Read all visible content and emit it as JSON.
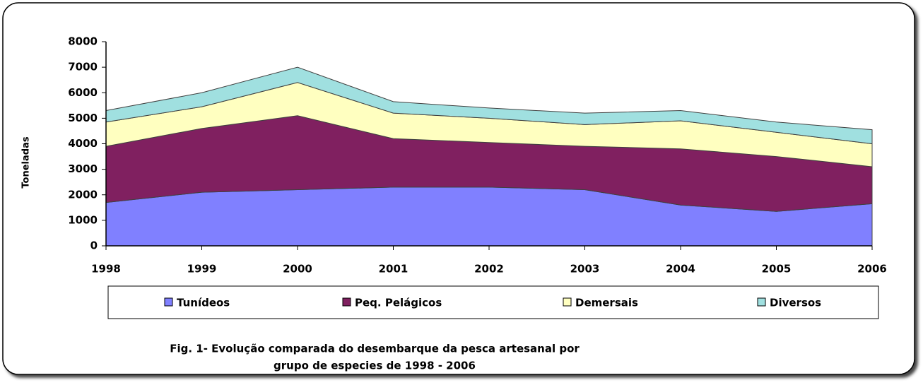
{
  "chart_data": {
    "type": "stacked_area",
    "title": [
      "Fig. 1- Evolução comparada do desembarque da pesca artesanal por",
      "grupo de especies de 1998 - 2006"
    ],
    "y_label": "Toneladas",
    "categories": [
      "1998",
      "1999",
      "2000",
      "2001",
      "2002",
      "2003",
      "2004",
      "2005",
      "2006"
    ],
    "series": [
      {
        "name": "Tunídeos",
        "color": "#8080ff",
        "values": [
          1700,
          2100,
          2200,
          2300,
          2300,
          2200,
          1600,
          1350,
          1650
        ]
      },
      {
        "name": "Peq. Pelágicos",
        "color": "#802060",
        "values": [
          2200,
          2500,
          2900,
          1900,
          1750,
          1700,
          2200,
          2150,
          1450
        ]
      },
      {
        "name": "Demersais",
        "color": "#ffffc0",
        "values": [
          950,
          850,
          1300,
          1000,
          950,
          850,
          1100,
          950,
          900
        ]
      },
      {
        "name": "Diversos",
        "color": "#a0e0e0",
        "values": [
          450,
          550,
          600,
          450,
          400,
          450,
          400,
          400,
          550
        ]
      }
    ],
    "ylim": [
      0,
      8000
    ],
    "yticks": [
      0,
      1000,
      2000,
      3000,
      4000,
      5000,
      6000,
      7000,
      8000
    ]
  }
}
